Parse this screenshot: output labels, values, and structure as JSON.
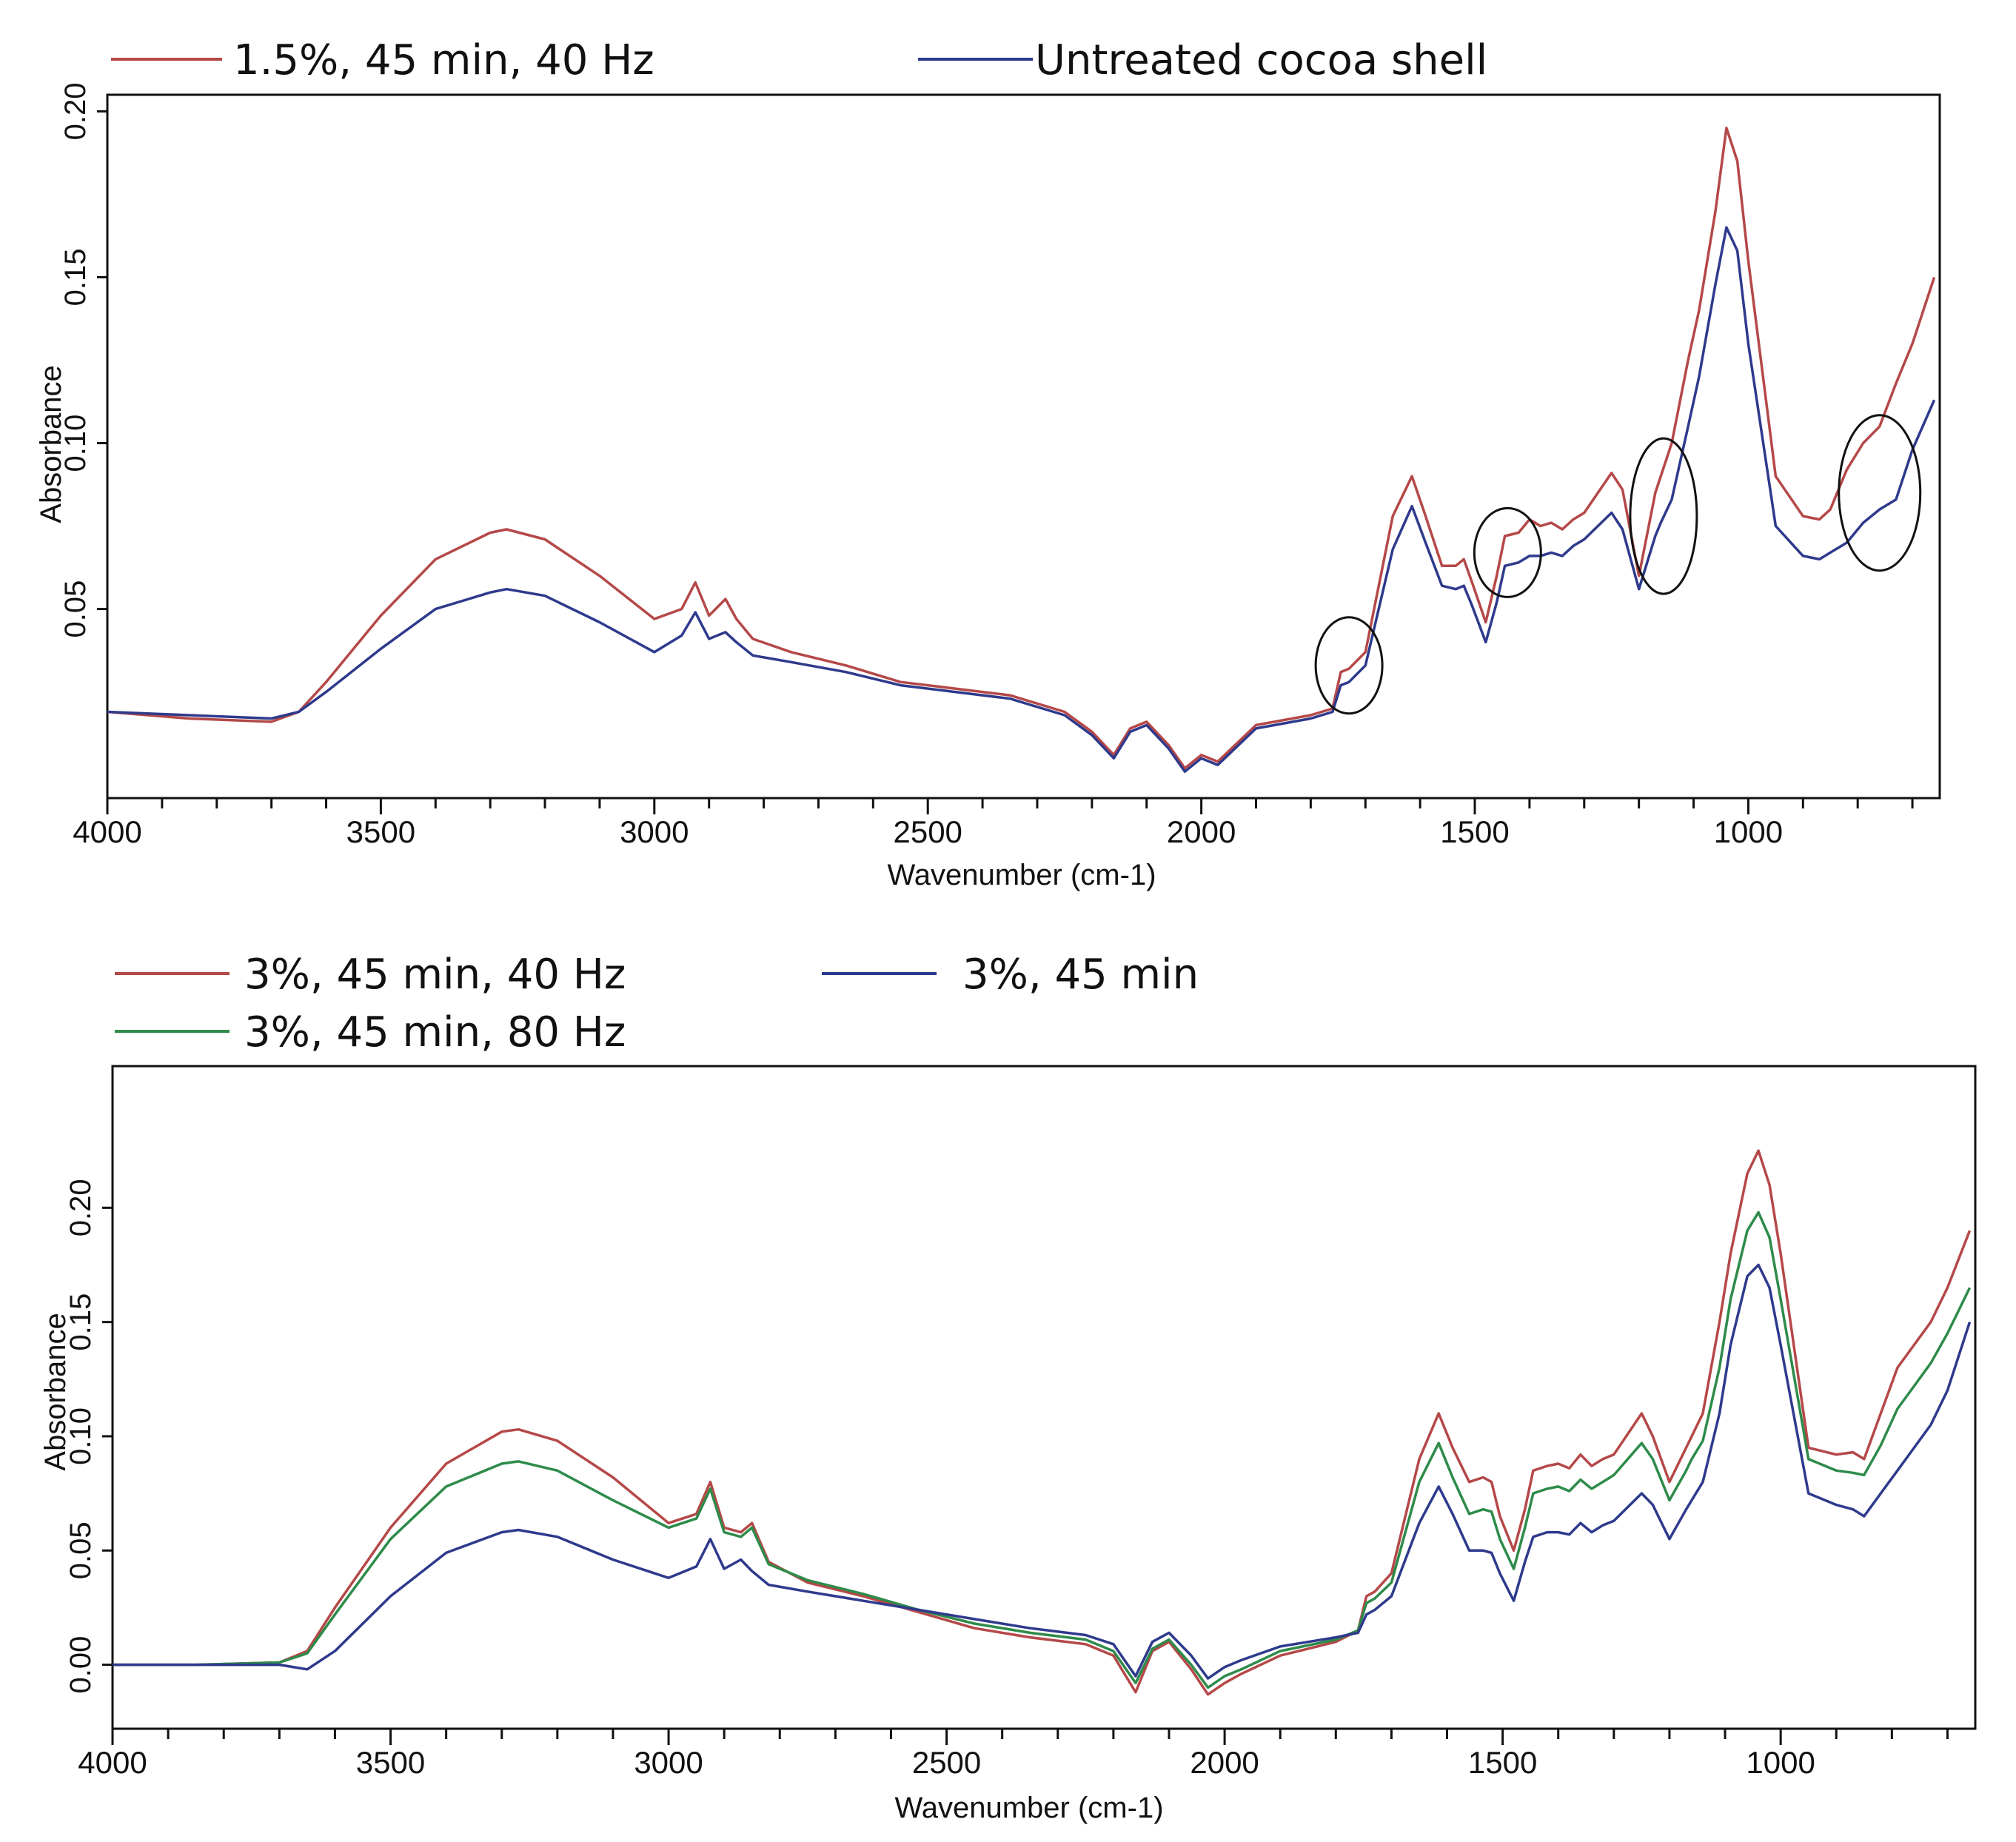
{
  "chart_data": [
    {
      "type": "line",
      "xlabel": "Wavenumber (cm-1)",
      "ylabel": "Absorbance",
      "xlim": [
        4000,
        650
      ],
      "ylim": [
        -0.007,
        0.205
      ],
      "x_ticks": [
        4000,
        3500,
        3000,
        2500,
        2000,
        1500,
        1000
      ],
      "y_ticks": [
        0.05,
        0.1,
        0.15,
        0.2
      ],
      "y_tick_labels": [
        "0.05",
        "0.10",
        "0.15",
        "0.20"
      ],
      "legend": [
        {
          "name": "1.5%, 45 min, 40 Hz",
          "color": "#b54848"
        },
        {
          "name": "Untreated cocoa shell",
          "color": "#2e3a8c"
        }
      ],
      "annotations": [
        {
          "shape": "ellipse",
          "x": 1730,
          "y": 0.033,
          "note": "circled region"
        },
        {
          "shape": "ellipse",
          "x": 1440,
          "y": 0.067,
          "note": "circled region"
        },
        {
          "shape": "ellipse",
          "x": 1155,
          "y": 0.078,
          "note": "circled region"
        },
        {
          "shape": "ellipse",
          "x": 760,
          "y": 0.085,
          "note": "circled region"
        }
      ],
      "series": [
        {
          "name": "1.5%, 45 min, 40 Hz",
          "color": "#b54848",
          "x": [
            4000,
            3850,
            3700,
            3650,
            3600,
            3500,
            3400,
            3300,
            3270,
            3200,
            3100,
            3000,
            2950,
            2925,
            2900,
            2870,
            2850,
            2820,
            2750,
            2650,
            2550,
            2450,
            2350,
            2250,
            2200,
            2160,
            2130,
            2100,
            2060,
            2030,
            2000,
            1970,
            1900,
            1800,
            1760,
            1745,
            1730,
            1700,
            1650,
            1615,
            1590,
            1560,
            1535,
            1520,
            1505,
            1480,
            1460,
            1445,
            1420,
            1400,
            1380,
            1360,
            1340,
            1320,
            1300,
            1250,
            1230,
            1200,
            1170,
            1160,
            1140,
            1110,
            1090,
            1060,
            1040,
            1020,
            1000,
            950,
            900,
            870,
            850,
            820,
            790,
            760,
            730,
            700,
            660
          ],
          "y": [
            0.019,
            0.017,
            0.016,
            0.019,
            0.028,
            0.048,
            0.065,
            0.073,
            0.074,
            0.071,
            0.06,
            0.047,
            0.05,
            0.058,
            0.048,
            0.053,
            0.047,
            0.041,
            0.037,
            0.033,
            0.028,
            0.026,
            0.024,
            0.019,
            0.013,
            0.006,
            0.014,
            0.016,
            0.009,
            0.002,
            0.006,
            0.004,
            0.015,
            0.018,
            0.02,
            0.031,
            0.032,
            0.037,
            0.078,
            0.09,
            0.078,
            0.063,
            0.063,
            0.065,
            0.058,
            0.046,
            0.06,
            0.072,
            0.073,
            0.077,
            0.075,
            0.076,
            0.074,
            0.077,
            0.079,
            0.091,
            0.086,
            0.06,
            0.085,
            0.09,
            0.1,
            0.125,
            0.14,
            0.17,
            0.195,
            0.185,
            0.155,
            0.09,
            0.078,
            0.077,
            0.08,
            0.092,
            0.1,
            0.105,
            0.118,
            0.13,
            0.15
          ]
        },
        {
          "name": "Untreated cocoa shell",
          "color": "#2e3a8c",
          "x": [
            4000,
            3850,
            3700,
            3650,
            3600,
            3500,
            3400,
            3300,
            3270,
            3200,
            3100,
            3000,
            2950,
            2925,
            2900,
            2870,
            2850,
            2820,
            2750,
            2650,
            2550,
            2450,
            2350,
            2250,
            2200,
            2160,
            2130,
            2100,
            2060,
            2030,
            2000,
            1970,
            1900,
            1800,
            1760,
            1745,
            1730,
            1700,
            1650,
            1615,
            1590,
            1560,
            1535,
            1520,
            1505,
            1480,
            1460,
            1445,
            1420,
            1400,
            1380,
            1360,
            1340,
            1320,
            1300,
            1250,
            1230,
            1200,
            1170,
            1160,
            1140,
            1110,
            1090,
            1060,
            1040,
            1020,
            1000,
            950,
            900,
            870,
            850,
            820,
            790,
            760,
            730,
            700,
            660
          ],
          "y": [
            0.019,
            0.018,
            0.017,
            0.019,
            0.025,
            0.038,
            0.05,
            0.055,
            0.056,
            0.054,
            0.046,
            0.037,
            0.042,
            0.049,
            0.041,
            0.043,
            0.04,
            0.036,
            0.034,
            0.031,
            0.027,
            0.025,
            0.023,
            0.018,
            0.012,
            0.005,
            0.013,
            0.015,
            0.008,
            0.001,
            0.005,
            0.003,
            0.014,
            0.017,
            0.019,
            0.027,
            0.028,
            0.033,
            0.068,
            0.081,
            0.07,
            0.057,
            0.056,
            0.057,
            0.051,
            0.04,
            0.052,
            0.063,
            0.064,
            0.066,
            0.066,
            0.067,
            0.066,
            0.069,
            0.071,
            0.079,
            0.074,
            0.056,
            0.072,
            0.076,
            0.083,
            0.105,
            0.12,
            0.148,
            0.165,
            0.158,
            0.13,
            0.075,
            0.066,
            0.065,
            0.067,
            0.07,
            0.076,
            0.08,
            0.083,
            0.098,
            0.113
          ]
        }
      ]
    },
    {
      "type": "line",
      "xlabel": "Wavenumber (cm-1)",
      "ylabel": "Absorbance",
      "xlim": [
        4000,
        650
      ],
      "ylim": [
        -0.028,
        0.262
      ],
      "x_ticks": [
        4000,
        3500,
        3000,
        2500,
        2000,
        1500,
        1000
      ],
      "y_ticks": [
        0.0,
        0.05,
        0.1,
        0.15,
        0.2
      ],
      "y_tick_labels": [
        "0.00",
        "0.05",
        "0.10",
        "0.15",
        "0.20"
      ],
      "legend": [
        {
          "name": "3%, 45 min, 40 Hz",
          "color": "#b54848"
        },
        {
          "name": "3%, 45 min",
          "color": "#2e3a8c"
        },
        {
          "name": "3%, 45 min, 80 Hz",
          "color": "#2e8b4a"
        }
      ],
      "series": [
        {
          "name": "3%, 45 min, 40 Hz",
          "color": "#b54848",
          "x": [
            4000,
            3850,
            3700,
            3650,
            3600,
            3500,
            3400,
            3300,
            3270,
            3200,
            3100,
            3000,
            2950,
            2925,
            2900,
            2870,
            2850,
            2820,
            2750,
            2650,
            2550,
            2450,
            2350,
            2250,
            2200,
            2160,
            2130,
            2100,
            2060,
            2030,
            2000,
            1970,
            1900,
            1800,
            1760,
            1745,
            1730,
            1700,
            1650,
            1615,
            1590,
            1560,
            1535,
            1520,
            1505,
            1480,
            1460,
            1445,
            1420,
            1400,
            1380,
            1360,
            1340,
            1320,
            1300,
            1250,
            1230,
            1200,
            1170,
            1160,
            1140,
            1110,
            1090,
            1060,
            1040,
            1020,
            1000,
            950,
            900,
            870,
            850,
            820,
            790,
            760,
            730,
            700,
            660
          ],
          "y": [
            0.0,
            0.0,
            0.001,
            0.006,
            0.025,
            0.06,
            0.088,
            0.102,
            0.103,
            0.098,
            0.082,
            0.062,
            0.066,
            0.08,
            0.06,
            0.058,
            0.062,
            0.045,
            0.036,
            0.03,
            0.023,
            0.016,
            0.012,
            0.009,
            0.004,
            -0.012,
            0.006,
            0.01,
            -0.002,
            -0.013,
            -0.008,
            -0.004,
            0.004,
            0.01,
            0.015,
            0.03,
            0.032,
            0.04,
            0.09,
            0.11,
            0.095,
            0.08,
            0.082,
            0.08,
            0.065,
            0.05,
            0.068,
            0.085,
            0.087,
            0.088,
            0.086,
            0.092,
            0.087,
            0.09,
            0.092,
            0.11,
            0.1,
            0.08,
            0.095,
            0.1,
            0.11,
            0.15,
            0.18,
            0.215,
            0.225,
            0.21,
            0.18,
            0.095,
            0.092,
            0.093,
            0.09,
            0.11,
            0.13,
            0.14,
            0.15,
            0.165,
            0.19
          ]
        },
        {
          "name": "3%, 45 min, 80 Hz",
          "color": "#2e8b4a",
          "x": [
            4000,
            3850,
            3700,
            3650,
            3600,
            3500,
            3400,
            3300,
            3270,
            3200,
            3100,
            3000,
            2950,
            2925,
            2900,
            2870,
            2850,
            2820,
            2750,
            2650,
            2550,
            2450,
            2350,
            2250,
            2200,
            2160,
            2130,
            2100,
            2060,
            2030,
            2000,
            1970,
            1900,
            1800,
            1760,
            1745,
            1730,
            1700,
            1650,
            1615,
            1590,
            1560,
            1535,
            1520,
            1505,
            1480,
            1460,
            1445,
            1420,
            1400,
            1380,
            1360,
            1340,
            1320,
            1300,
            1250,
            1230,
            1200,
            1170,
            1160,
            1140,
            1110,
            1090,
            1060,
            1040,
            1020,
            1000,
            950,
            900,
            870,
            850,
            820,
            790,
            760,
            730,
            700,
            660
          ],
          "y": [
            0.0,
            0.0,
            0.001,
            0.005,
            0.022,
            0.055,
            0.078,
            0.088,
            0.089,
            0.085,
            0.072,
            0.06,
            0.064,
            0.077,
            0.058,
            0.056,
            0.06,
            0.044,
            0.037,
            0.031,
            0.024,
            0.018,
            0.014,
            0.011,
            0.006,
            -0.008,
            0.007,
            0.011,
            0.0,
            -0.01,
            -0.005,
            -0.002,
            0.006,
            0.011,
            0.015,
            0.027,
            0.029,
            0.036,
            0.08,
            0.097,
            0.082,
            0.066,
            0.068,
            0.067,
            0.055,
            0.042,
            0.06,
            0.075,
            0.077,
            0.078,
            0.076,
            0.081,
            0.077,
            0.08,
            0.083,
            0.097,
            0.09,
            0.072,
            0.085,
            0.09,
            0.098,
            0.13,
            0.16,
            0.19,
            0.198,
            0.187,
            0.16,
            0.09,
            0.085,
            0.084,
            0.083,
            0.096,
            0.112,
            0.122,
            0.132,
            0.145,
            0.165
          ]
        },
        {
          "name": "3%, 45 min",
          "color": "#2e3a8c",
          "x": [
            4000,
            3850,
            3700,
            3650,
            3600,
            3500,
            3400,
            3300,
            3270,
            3200,
            3100,
            3000,
            2950,
            2925,
            2900,
            2870,
            2850,
            2820,
            2750,
            2650,
            2550,
            2450,
            2350,
            2250,
            2200,
            2160,
            2130,
            2100,
            2060,
            2030,
            2000,
            1970,
            1900,
            1800,
            1760,
            1745,
            1730,
            1700,
            1650,
            1615,
            1590,
            1560,
            1535,
            1520,
            1505,
            1480,
            1460,
            1445,
            1420,
            1400,
            1380,
            1360,
            1340,
            1320,
            1300,
            1250,
            1230,
            1200,
            1170,
            1160,
            1140,
            1110,
            1090,
            1060,
            1040,
            1020,
            1000,
            950,
            900,
            870,
            850,
            820,
            790,
            760,
            730,
            700,
            660
          ],
          "y": [
            0.0,
            0.0,
            0.0,
            -0.002,
            0.006,
            0.03,
            0.049,
            0.058,
            0.059,
            0.056,
            0.046,
            0.038,
            0.043,
            0.055,
            0.042,
            0.046,
            0.041,
            0.035,
            0.032,
            0.028,
            0.024,
            0.02,
            0.016,
            0.013,
            0.009,
            -0.005,
            0.01,
            0.014,
            0.004,
            -0.006,
            -0.001,
            0.002,
            0.008,
            0.012,
            0.014,
            0.022,
            0.024,
            0.03,
            0.062,
            0.078,
            0.066,
            0.05,
            0.05,
            0.049,
            0.04,
            0.028,
            0.045,
            0.056,
            0.058,
            0.058,
            0.057,
            0.062,
            0.058,
            0.061,
            0.063,
            0.075,
            0.07,
            0.055,
            0.068,
            0.072,
            0.08,
            0.11,
            0.14,
            0.17,
            0.175,
            0.165,
            0.14,
            0.075,
            0.07,
            0.068,
            0.065,
            0.075,
            0.085,
            0.095,
            0.105,
            0.12,
            0.15
          ]
        }
      ]
    }
  ]
}
